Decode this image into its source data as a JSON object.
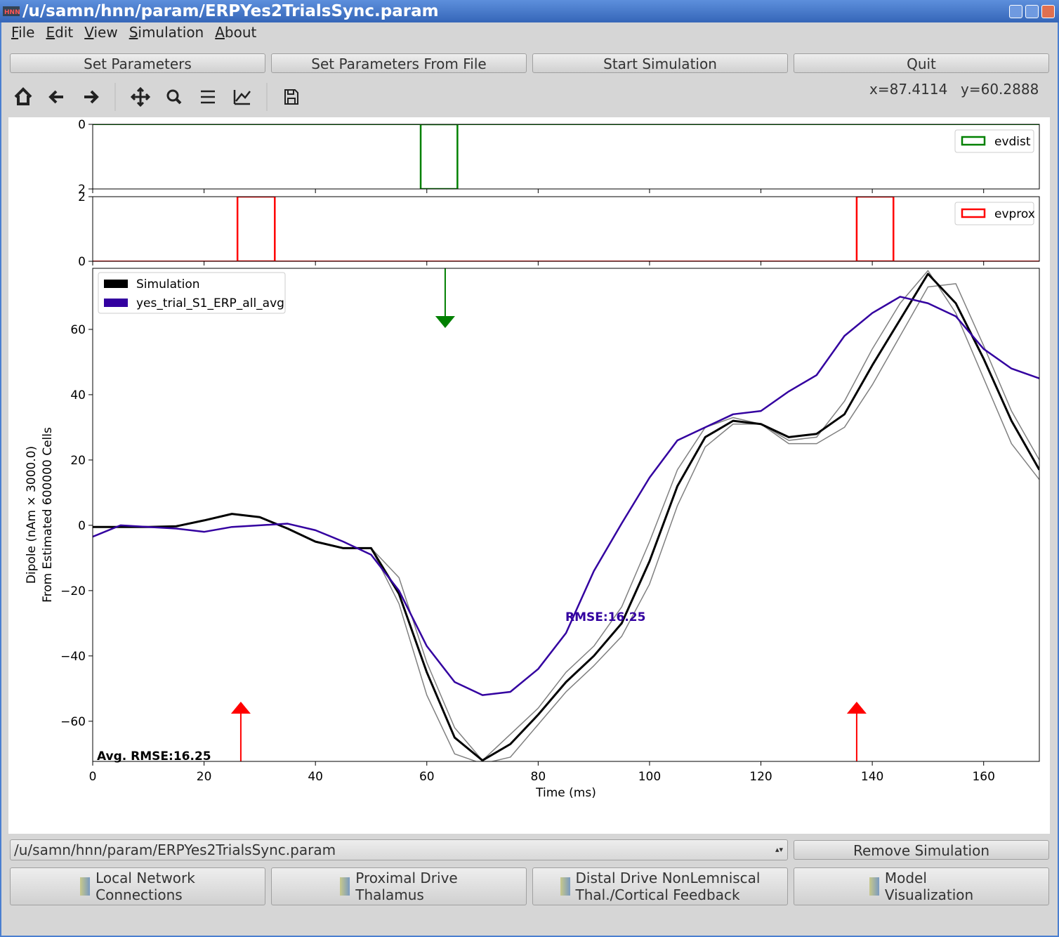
{
  "window": {
    "title": "/u/samn/hnn/param/ERPYes2TrialsSync.param"
  },
  "menu": [
    "File",
    "Edit",
    "View",
    "Simulation",
    "About"
  ],
  "buttons": [
    "Set Parameters",
    "Set Parameters From File",
    "Start Simulation",
    "Quit"
  ],
  "cursor": {
    "x": "x=87.4114",
    "y": "y=60.2888"
  },
  "chart_data": [
    {
      "type": "histogram",
      "bins": [
        58.9,
        65.5
      ],
      "values": [
        2
      ],
      "color": "#008000",
      "xlim": [
        0,
        170
      ],
      "ylim": [
        2,
        0
      ],
      "yticks": [
        0,
        2
      ],
      "legend": "upper right",
      "label": "evdist"
    },
    {
      "type": "histogram",
      "bins": [
        26,
        32.7,
        137.2,
        143.8
      ],
      "values": [
        2,
        0,
        2
      ],
      "color": "#ff0000",
      "xlim": [
        0,
        170
      ],
      "ylim": [
        0,
        2
      ],
      "yticks": [
        0,
        2
      ],
      "legend": "upper right",
      "label": "evprox"
    },
    {
      "type": "line",
      "xlabel": "Time (ms)",
      "ylabel": [
        "Dipole (nAm × 3000.0)",
        "From Estimated 600000 Cells"
      ],
      "x": [
        0,
        5,
        10,
        15,
        20,
        25,
        30,
        35,
        40,
        45,
        50,
        55,
        60,
        65,
        70,
        75,
        80,
        85,
        90,
        95,
        100,
        105,
        110,
        115,
        120,
        125,
        130,
        135,
        140,
        145,
        150,
        155,
        160,
        165,
        170
      ],
      "series": [
        {
          "color": "#808080",
          "linewidth": 1.5,
          "values": [
            -0.5,
            -0.5,
            -0.5,
            -0.3,
            1.5,
            3.5,
            2.5,
            -1,
            -5,
            -7,
            -7,
            -16,
            -42,
            -62,
            -72,
            -64,
            -56,
            -45,
            -37,
            -25,
            -5,
            17,
            30,
            33,
            31,
            26,
            27,
            38,
            54,
            68,
            78,
            65,
            45,
            25,
            14
          ]
        },
        {
          "color": "#808080",
          "linewidth": 1.5,
          "values": [
            -0.5,
            -0.5,
            -0.5,
            -0.3,
            1.5,
            3.5,
            2.5,
            -1,
            -5,
            -7,
            -7,
            -24,
            -52,
            -70,
            -73,
            -71,
            -61,
            -51,
            -43,
            -34,
            -18,
            6,
            24,
            31,
            31,
            25,
            25,
            30,
            43,
            58,
            73,
            74,
            55,
            35,
            20
          ]
        },
        {
          "name": "Simulation",
          "color": "#000000",
          "linewidth": 3,
          "values": [
            -0.5,
            -0.5,
            -0.5,
            -0.3,
            1.5,
            3.5,
            2.5,
            -1,
            -5,
            -7,
            -7,
            -21,
            -45,
            -65,
            -72,
            -67,
            -58,
            -48,
            -40,
            -30,
            -11,
            12,
            27,
            32,
            31,
            27,
            28,
            34,
            49,
            63,
            77,
            68,
            51,
            32,
            17
          ]
        },
        {
          "name": "yes_trial_S1_ERP_all_avg",
          "color": "#3300a0",
          "linewidth": 2.5,
          "values": [
            -3.5,
            0,
            -0.5,
            -1,
            -2,
            -0.5,
            0,
            0.5,
            -1.5,
            -5,
            -9,
            -20,
            -37,
            -48,
            -52,
            -51,
            -44,
            -33,
            -14,
            0.6,
            14.6,
            26,
            30,
            34,
            35,
            41,
            46,
            58,
            65,
            70,
            68,
            64,
            54,
            48,
            45
          ]
        }
      ],
      "arrows": [
        {
          "x": 63.3,
          "color": "#008000",
          "direction": "down"
        },
        {
          "x": 26.6,
          "color": "#ff0000",
          "direction": "up"
        },
        {
          "x": 137.2,
          "color": "#ff0000",
          "direction": "up"
        }
      ],
      "annotations": [
        "RMSE:16.25",
        "Avg. RMSE:16.25"
      ],
      "xlim": [
        0,
        170
      ],
      "xticks": [
        0,
        20,
        40,
        60,
        80,
        100,
        120,
        140,
        160
      ],
      "ylim": [
        -72.3,
        78.7
      ],
      "yticks": [
        {
          "value": -60,
          "label": "−60"
        },
        {
          "value": -40,
          "label": "−40"
        },
        {
          "value": -20,
          "label": "−20"
        },
        0,
        20,
        40,
        60
      ],
      "legend": "upper left"
    }
  ],
  "file_select": "/u/samn/hnn/param/ERPYes2TrialsSync.param",
  "remove_button": "Remove Simulation",
  "drive_buttons": [
    [
      "Local Network",
      "Connections"
    ],
    [
      "Proximal Drive",
      "Thalamus"
    ],
    [
      "Distal Drive NonLemniscal",
      "Thal./Cortical Feedback"
    ],
    [
      "Model",
      "Visualization"
    ]
  ]
}
